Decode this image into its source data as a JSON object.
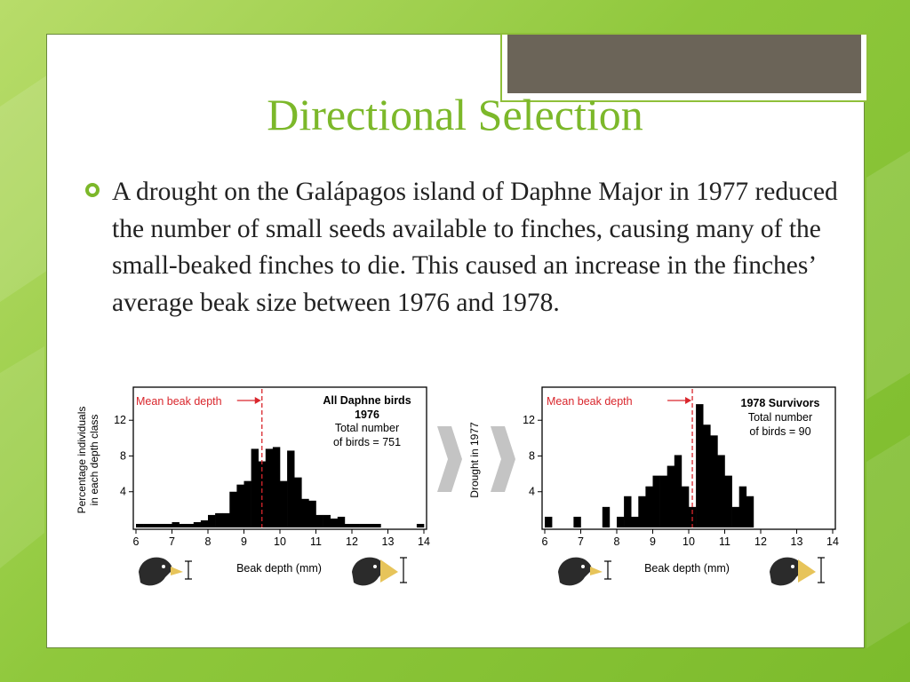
{
  "slide": {
    "title": "Directional Selection",
    "bullet": "A drought on the Galápagos island of Daphne Major in 1977 reduced the number of small seeds available to finches, causing many of the small-beaked finches to die. This caused an increase in the finches’ average beak size between 1976 and 1978."
  },
  "colors": {
    "accent": "#7cb82a",
    "mean_line": "#d9262c",
    "bars": "#000000"
  },
  "figure": {
    "y_axis_label_line1": "Percentage individuals",
    "y_axis_label_line2": "in each depth class",
    "arrow_label": "Drought in 1977",
    "icons": [
      "finch-small-beak-icon",
      "finch-large-beak-icon"
    ]
  },
  "chart_data": [
    {
      "type": "bar",
      "mean_label": "Mean beak depth",
      "mean_value": 9.5,
      "annotation_title_line1": "All Daphne birds",
      "annotation_title_line2": "1976",
      "annotation_line1": "Total number",
      "annotation_line2": "of birds = 751",
      "xlabel": "Beak depth (mm)",
      "xlim": [
        6,
        14
      ],
      "ylim": [
        0,
        15.5
      ],
      "xticks": [
        "6",
        "7",
        "8",
        "9",
        "10",
        "11",
        "12",
        "13",
        "14"
      ],
      "yticks": [
        "4",
        "8",
        "12"
      ],
      "x": [
        6.0,
        6.2,
        6.4,
        6.6,
        6.8,
        7.0,
        7.2,
        7.4,
        7.6,
        7.8,
        8.0,
        8.2,
        8.4,
        8.6,
        8.8,
        9.0,
        9.2,
        9.4,
        9.6,
        9.8,
        10.0,
        10.2,
        10.4,
        10.6,
        10.8,
        11.0,
        11.2,
        11.4,
        11.6,
        11.8,
        12.0,
        12.2,
        12.4,
        12.6,
        13.8
      ],
      "values": [
        0.4,
        0.4,
        0.4,
        0.4,
        0.4,
        0.6,
        0.4,
        0.4,
        0.6,
        0.8,
        1.4,
        1.6,
        1.6,
        4.0,
        4.8,
        5.2,
        8.8,
        7.4,
        8.8,
        9.0,
        5.2,
        8.6,
        5.6,
        3.2,
        3.0,
        1.4,
        1.4,
        1.0,
        1.2,
        0.4,
        0.4,
        0.4,
        0.4,
        0.4,
        0.4
      ],
      "bar_width": 0.2
    },
    {
      "type": "bar",
      "mean_label": "Mean beak depth",
      "mean_value": 10.1,
      "annotation_title_line1": "1978 Survivors",
      "annotation_title_line2": "",
      "annotation_line1": "Total number",
      "annotation_line2": "of birds = 90",
      "xlabel": "Beak depth (mm)",
      "xlim": [
        6,
        14
      ],
      "ylim": [
        0,
        15.5
      ],
      "xticks": [
        "6",
        "7",
        "8",
        "9",
        "10",
        "11",
        "12",
        "13",
        "14"
      ],
      "yticks": [
        "4",
        "8",
        "12"
      ],
      "x": [
        6.0,
        6.8,
        7.6,
        8.0,
        8.2,
        8.4,
        8.6,
        8.8,
        9.0,
        9.2,
        9.4,
        9.6,
        9.8,
        10.0,
        10.2,
        10.4,
        10.6,
        10.8,
        11.0,
        11.2,
        11.4,
        11.6
      ],
      "values": [
        1.2,
        1.2,
        2.3,
        1.2,
        3.5,
        1.2,
        3.5,
        4.6,
        5.8,
        5.8,
        6.9,
        8.1,
        4.6,
        2.3,
        13.8,
        11.5,
        10.3,
        8.1,
        5.8,
        2.3,
        4.6,
        3.5
      ],
      "bar_width": 0.2
    }
  ]
}
